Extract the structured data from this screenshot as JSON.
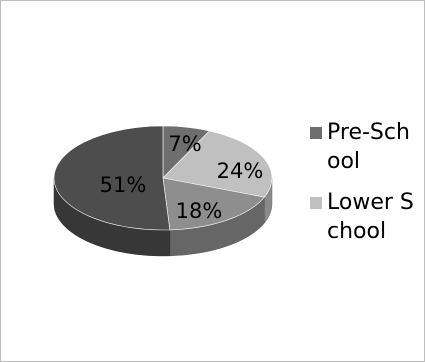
{
  "chart_data": {
    "type": "pie",
    "title": "",
    "slices": [
      {
        "label": "7%",
        "value": 7,
        "color": "#6e6e6e",
        "legend": "Pre-School"
      },
      {
        "label": "24%",
        "value": 24,
        "color": "#c0c0c0",
        "legend": "Lower School"
      },
      {
        "label": "18%",
        "value": 18,
        "color": "#8e8e8e",
        "legend": ""
      },
      {
        "label": "51%",
        "value": 51,
        "color": "#4d4d4d",
        "legend": ""
      }
    ],
    "legend_position": "right",
    "style": "3d"
  }
}
